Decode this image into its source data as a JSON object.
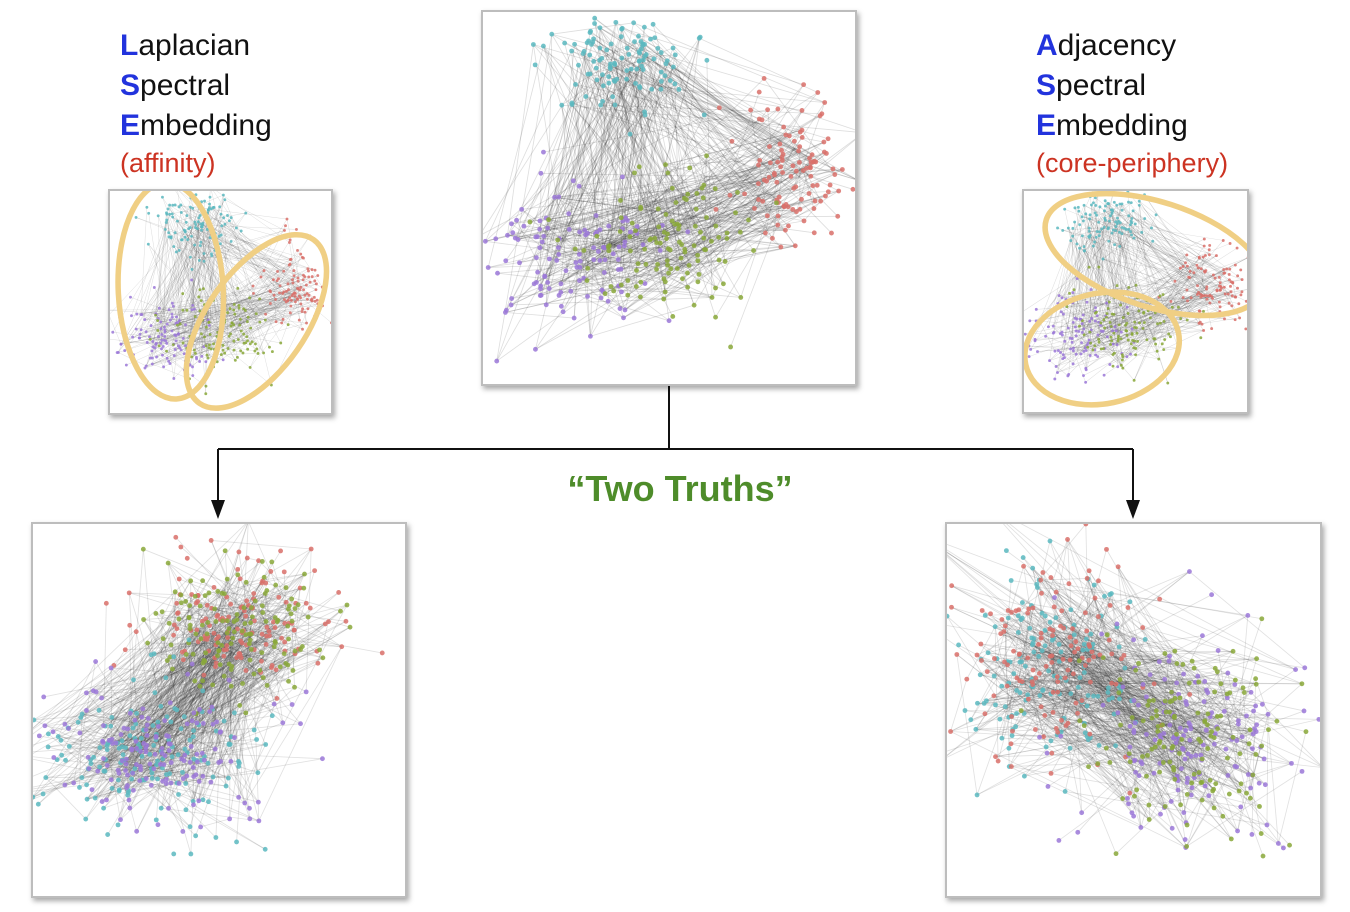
{
  "left_label": {
    "line1": {
      "initial": "L",
      "rest": "aplacian"
    },
    "line2": {
      "initial": "S",
      "rest": "pectral"
    },
    "line3": {
      "initial": "E",
      "rest": "mbedding"
    },
    "note": "(affinity)"
  },
  "right_label": {
    "line1": {
      "initial": "A",
      "rest": "djacency"
    },
    "line2": {
      "initial": "S",
      "rest": "pectral"
    },
    "line3": {
      "initial": "E",
      "rest": "mbedding"
    },
    "note": "(core-periphery)"
  },
  "center_title": "“Two Truths”",
  "colors": {
    "cyan": "#5ab8c0",
    "red": "#d9706a",
    "purple": "#9b78d8",
    "green": "#8aa83a",
    "ellipse": "#f0cf84",
    "initial_blue": "#2233dd",
    "note_red": "#cc3322",
    "title_green": "#4e8c2a"
  }
}
